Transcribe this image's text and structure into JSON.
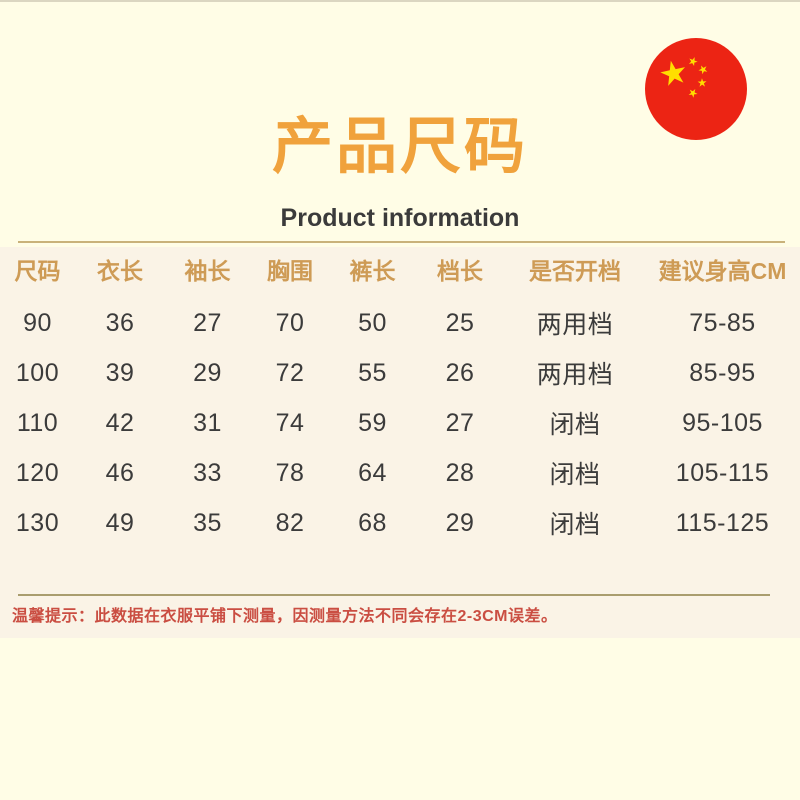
{
  "flag": {
    "label": "china-flag-badge",
    "red": "#EC2414",
    "yellow": "#FFDE00"
  },
  "header": {
    "title": "产品尺码",
    "subtitle": "Product information"
  },
  "table": {
    "columns": [
      "尺码",
      "衣长",
      "袖长",
      "胸围",
      "裤长",
      "档长",
      "是否开档",
      "建议身高CM"
    ],
    "rows": [
      [
        "90",
        "36",
        "27",
        "70",
        "50",
        "25",
        "两用档",
        "75-85"
      ],
      [
        "100",
        "39",
        "29",
        "72",
        "55",
        "26",
        "两用档",
        "85-95"
      ],
      [
        "110",
        "42",
        "31",
        "74",
        "59",
        "27",
        "闭档",
        "95-105"
      ],
      [
        "120",
        "46",
        "33",
        "78",
        "64",
        "28",
        "闭档",
        "105-115"
      ],
      [
        "130",
        "49",
        "35",
        "82",
        "68",
        "29",
        "闭档",
        "115-125"
      ]
    ]
  },
  "note": {
    "text": "温馨提示：此数据在衣服平铺下测量，因测量方法不同会存在2-3CM误差。"
  },
  "colors": {
    "background": "#FFFDE6",
    "table_band": "#FAF3E6",
    "title": "#F0A23C",
    "table_header": "#CE9B55",
    "body_text": "#3B3B3B",
    "note_text": "#CA4E42",
    "rule_top": "#C9B27A",
    "rule_bottom": "#A99D6E"
  }
}
